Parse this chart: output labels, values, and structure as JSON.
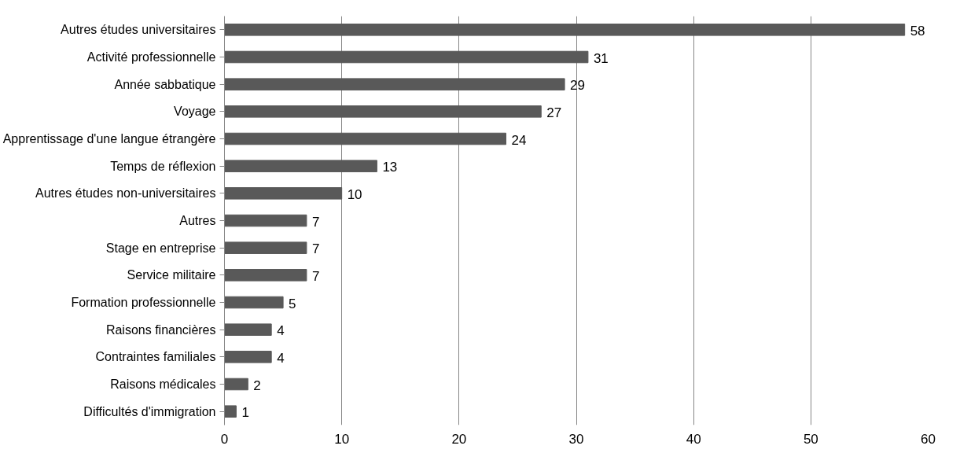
{
  "chart_data": {
    "type": "bar",
    "orientation": "horizontal",
    "categories": [
      "Autres études universitaires",
      "Activité professionnelle",
      "Année sabbatique",
      "Voyage",
      "Apprentissage d'une langue étrangère",
      "Temps de réflexion",
      "Autres études non-universitaires",
      "Autres",
      "Stage en entreprise",
      "Service militaire",
      "Formation professionnelle",
      "Raisons financières",
      "Contraintes familiales",
      "Raisons médicales",
      "Difficultés d'immigration"
    ],
    "values": [
      58,
      31,
      29,
      27,
      24,
      13,
      10,
      7,
      7,
      7,
      5,
      4,
      4,
      2,
      1
    ],
    "color": "#595959",
    "xlim": [
      0,
      60
    ],
    "xticks": [
      0,
      10,
      20,
      30,
      40,
      50,
      60
    ],
    "grid": "x",
    "data_labels": true
  }
}
